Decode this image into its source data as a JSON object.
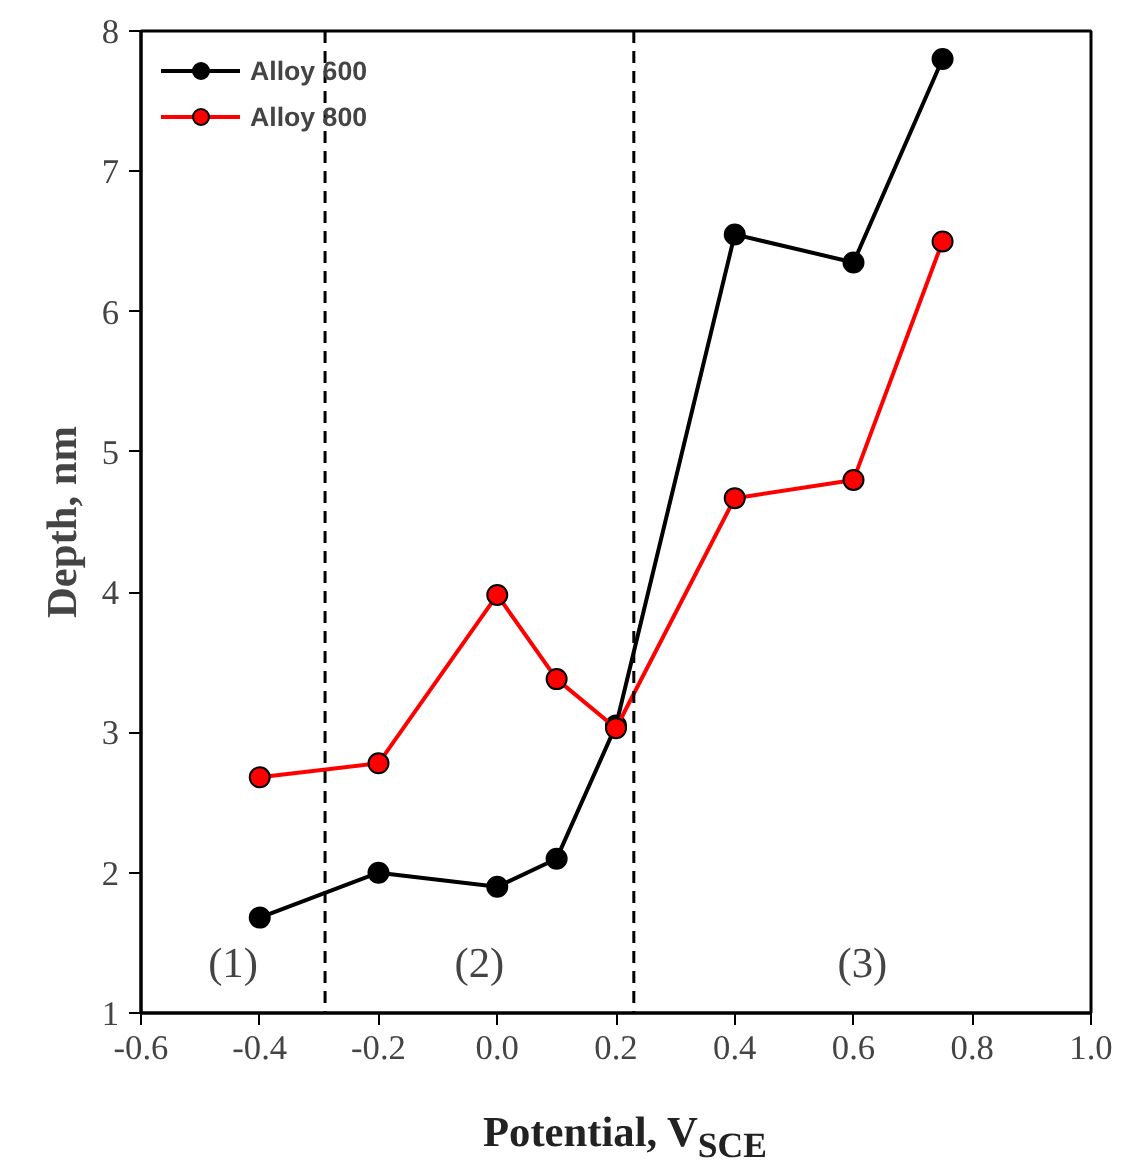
{
  "chart_data": {
    "type": "line",
    "xlabel": "Potential, V$_{SCE}$",
    "ylabel": "Depth, nm",
    "xlim": [
      -0.6,
      1.0
    ],
    "xticks": [
      {
        "value": -0.6,
        "label": "-0.6"
      },
      {
        "value": -0.4,
        "label": "-0.4"
      },
      {
        "value": -0.2,
        "label": "-0.2"
      },
      {
        "value": 0,
        "label": "0.0"
      },
      {
        "value": 0.2,
        "label": "0.2"
      },
      {
        "value": 0.4,
        "label": "0.4"
      },
      {
        "value": 0.6,
        "label": "0.6"
      },
      {
        "value": 0.8,
        "label": "0.8"
      },
      {
        "value": 1.0,
        "label": "1.0"
      }
    ],
    "ylim": [
      1,
      8
    ],
    "yticks": [
      1,
      2,
      3,
      4,
      5,
      6,
      7,
      8
    ],
    "x": [
      -0.4,
      -0.2,
      0,
      0.1,
      0.2,
      0.4,
      0.6,
      0.75
    ],
    "series": [
      {
        "name": "Alloy 600",
        "color": "#000000",
        "values": [
          1.68,
          2.0,
          1.9,
          2.1,
          3.05,
          6.55,
          6.35,
          7.8
        ]
      },
      {
        "name": "Alloy 800",
        "color": "#ff0000",
        "values": [
          2.68,
          2.78,
          3.98,
          3.38,
          3.03,
          4.67,
          4.8,
          6.5
        ]
      }
    ],
    "marker": "circle",
    "legend": "top left",
    "grid": false,
    "ref_lines": [
      {
        "axis": "x",
        "value": -0.29,
        "line_style": "dashed",
        "color": "#000000"
      },
      {
        "axis": "x",
        "value": 0.23,
        "line_style": "dashed",
        "color": "#000000"
      }
    ],
    "annotations": [
      "(1)",
      "(2)",
      "(3)"
    ]
  }
}
